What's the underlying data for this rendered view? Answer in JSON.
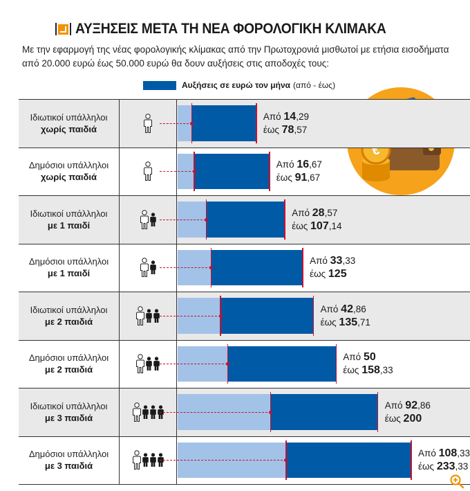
{
  "title": "ΑΥΞΗΣΕΙΣ ΜΕΤΑ ΤΗ ΝΕΑ ΦΟΡΟΛΟΓΙΚΗ ΚΛΙΜΑΚΑ",
  "subtitle": "Με την εφαρμογή της νέας φορολογικής κλίμακας από την Πρωτοχρονιά μισθωτοί με ετήσια εισοδήματα από 20.000 ευρώ έως 50.000 ευρώ θα δουν αυξήσεις στις αποδοχές τους:",
  "legend": {
    "label": "Αυξήσεις σε ευρώ τον μήνα",
    "range": "(από - έως)"
  },
  "colors": {
    "accent": "#f39200",
    "bar_max": "#005aa6",
    "bar_min": "#a3c2e8",
    "marker": "#c8102e",
    "shade": "#e9e9e9"
  },
  "icons": {
    "title": "orange-arrow-icon",
    "decor": "wallet-coins-icon",
    "zoom": "zoom-in-icon"
  },
  "chart_data": {
    "type": "bar",
    "categories": [
      "Ιδιωτικοί υπάλληλοι χωρίς παιδιά",
      "Δημόσιοι υπάλληλοι χωρίς παιδιά",
      "Ιδιωτικοί υπάλληλοι με 1 παιδί",
      "Δημόσιοι υπάλληλοι με 1 παιδί",
      "Ιδιωτικοί υπάλληλοι με 2 παιδιά",
      "Δημόσιοι υπάλληλοι με 2 παιδιά",
      "Ιδιωτικοί υπάλληλοι με 3 παιδιά",
      "Δημόσιοι υπάλληλοι με 3 παιδιά"
    ],
    "series": [
      {
        "name": "Από",
        "values": [
          14.29,
          16.67,
          28.57,
          33.33,
          42.86,
          50,
          92.86,
          108.33
        ]
      },
      {
        "name": "έως",
        "values": [
          78.57,
          91.67,
          107.14,
          125,
          135.71,
          158.33,
          200,
          233.33
        ]
      }
    ],
    "title": "ΑΥΞΗΣΕΙΣ ΜΕΤΑ ΤΗ ΝΕΑ ΦΟΡΟΛΟΓΙΚΗ ΚΛΙΜΑΚΑ",
    "xlabel": "Αυξήσεις σε ευρώ τον μήνα",
    "ylabel": "",
    "xlim": [
      0,
      233.33
    ],
    "orientation": "horizontal"
  },
  "rows": [
    {
      "line1": "Ιδιωτικοί υπάλληλοι",
      "line2": "χωρίς παιδιά",
      "children": 0,
      "from_label": "Από",
      "to_label": "έως",
      "from_int": "14",
      "from_dec": ",29",
      "to_int": "78",
      "to_dec": ",57"
    },
    {
      "line1": "Δημόσιοι υπάλληλοι",
      "line2": "χωρίς παιδιά",
      "children": 0,
      "from_label": "Από",
      "to_label": "έως",
      "from_int": "16",
      "from_dec": ",67",
      "to_int": "91",
      "to_dec": ",67"
    },
    {
      "line1": "Ιδιωτικοί υπάλληλοι",
      "line2": "με 1 παιδί",
      "children": 1,
      "from_label": "Από",
      "to_label": "έως",
      "from_int": "28",
      "from_dec": ",57",
      "to_int": "107",
      "to_dec": ",14"
    },
    {
      "line1": "Δημόσιοι υπάλληλοι",
      "line2": "με 1 παιδί",
      "children": 1,
      "from_label": "Από",
      "to_label": "έως",
      "from_int": "33",
      "from_dec": ",33",
      "to_int": "125",
      "to_dec": ""
    },
    {
      "line1": "Ιδιωτικοί υπάλληλοι",
      "line2": "με 2 παιδιά",
      "children": 2,
      "from_label": "Από",
      "to_label": "έως",
      "from_int": "42",
      "from_dec": ",86",
      "to_int": "135",
      "to_dec": ",71"
    },
    {
      "line1": "Δημόσιοι υπάλληλοι",
      "line2": "με 2 παιδιά",
      "children": 2,
      "from_label": "Από",
      "to_label": "έως",
      "from_int": "50",
      "from_dec": "",
      "to_int": "158",
      "to_dec": ",33"
    },
    {
      "line1": "Ιδιωτικοί υπάλληλοι",
      "line2": "με 3 παιδιά",
      "children": 3,
      "from_label": "Από",
      "to_label": "έως",
      "from_int": "92",
      "from_dec": ",86",
      "to_int": "200",
      "to_dec": ""
    },
    {
      "line1": "Δημόσιοι υπάλληλοι",
      "line2": "με 3 παιδιά",
      "children": 3,
      "from_label": "Από",
      "to_label": "έως",
      "from_int": "108",
      "from_dec": ",33",
      "to_int": "233",
      "to_dec": ",33"
    }
  ]
}
